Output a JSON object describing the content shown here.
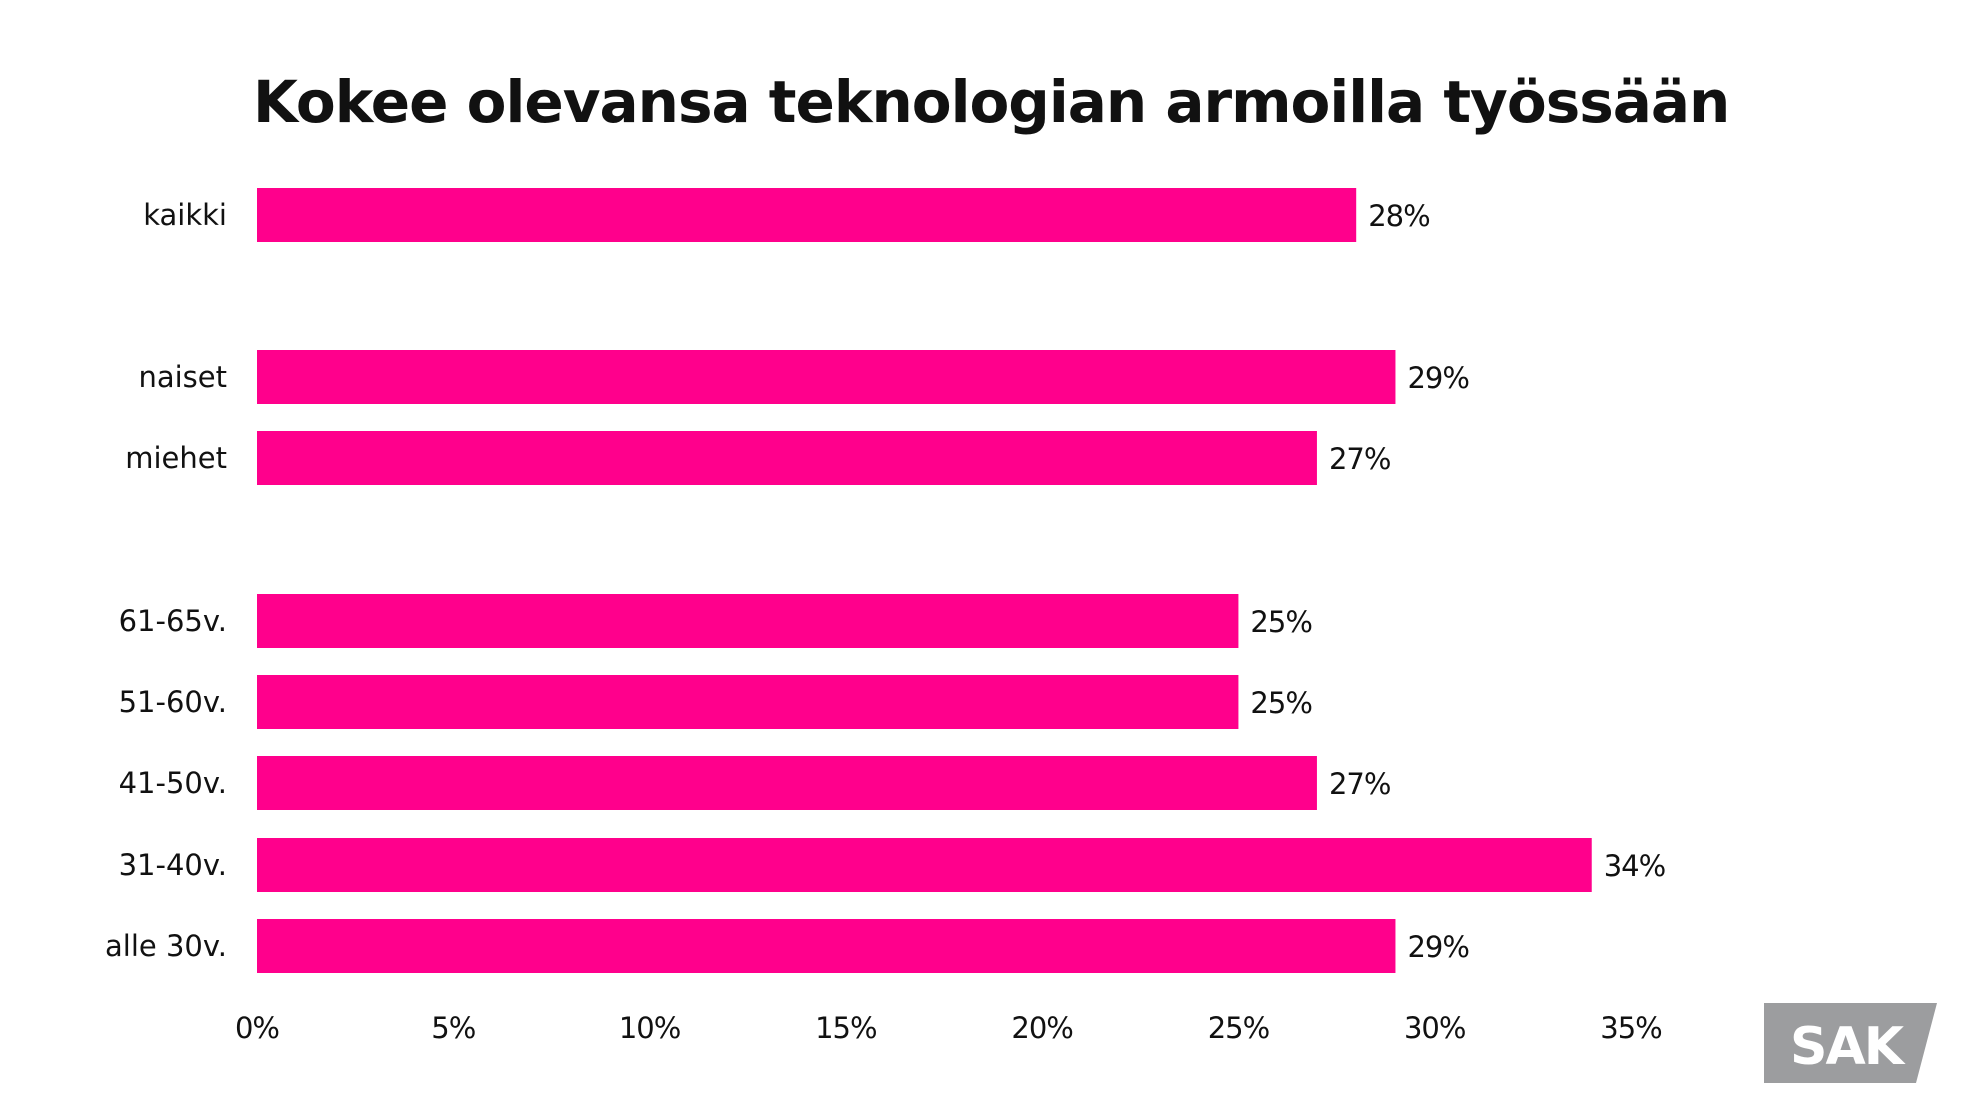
{
  "chart_data": {
    "type": "bar",
    "orientation": "horizontal",
    "title": "Kokee olevansa teknologian armoilla työssään",
    "categories": [
      "kaikki",
      "naiset",
      "miehet",
      "61-65v.",
      "51-60v.",
      "41-50v.",
      "31-40v.",
      "alle 30v."
    ],
    "values": [
      28,
      29,
      27,
      25,
      25,
      27,
      34,
      29
    ],
    "value_labels": [
      "28%",
      "29%",
      "27%",
      "25%",
      "25%",
      "27%",
      "34%",
      "29%"
    ],
    "groups": [
      [
        0
      ],
      [
        1,
        2
      ],
      [
        3,
        4,
        5,
        6,
        7
      ]
    ],
    "xlim": [
      0,
      35
    ],
    "xticks": [
      0,
      5,
      10,
      15,
      20,
      25,
      30,
      35
    ],
    "xtick_labels": [
      "0%",
      "5%",
      "10%",
      "15%",
      "20%",
      "25%",
      "30%",
      "35%"
    ],
    "xlabel": "",
    "ylabel": "",
    "grid": false,
    "bar_color": "#FF008C"
  },
  "logo": {
    "text": "SAK",
    "color": "#9C9D9F"
  }
}
